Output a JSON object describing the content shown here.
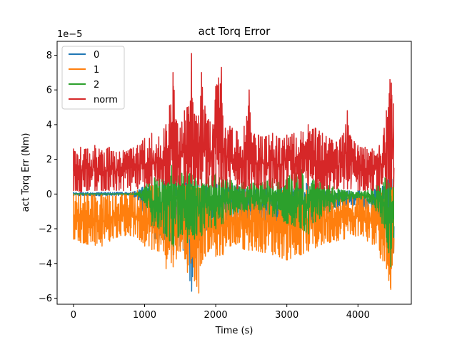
{
  "chart_data": {
    "type": "line",
    "title": "act Torq Error",
    "xlabel": "Time (s)",
    "ylabel": "act Torq Err (Nm)",
    "y_offset_text": "1e−5",
    "xlim": [
      -230,
      4750
    ],
    "ylim": [
      -6.35,
      8.8
    ],
    "y_scale_exponent": -5,
    "xticks": [
      0,
      1000,
      2000,
      3000,
      4000
    ],
    "xtick_labels": [
      "0",
      "1000",
      "2000",
      "3000",
      "4000"
    ],
    "yticks": [
      -6,
      -4,
      -2,
      0,
      2,
      4,
      6,
      8
    ],
    "ytick_labels": [
      "−6",
      "−4",
      "−2",
      "0",
      "2",
      "4",
      "6",
      "8"
    ],
    "legend_position": "top-left",
    "grid": false,
    "series": [
      {
        "name": "0",
        "color": "#1f77b4",
        "envelope": {
          "x": [
            0,
            100,
            200,
            400,
            600,
            800,
            900,
            1000,
            1100,
            1200,
            1300,
            1400,
            1500,
            1600,
            1660,
            1700,
            1800,
            1900,
            2000,
            2100,
            2200,
            2400,
            2600,
            2800,
            3000,
            3200,
            3300,
            3400,
            3600,
            3800,
            4000,
            4200,
            4400,
            4460,
            4500
          ],
          "high": [
            0.1,
            0.1,
            0.1,
            0.1,
            0.1,
            0.1,
            0.2,
            0.5,
            0.6,
            0.6,
            0.8,
            1.0,
            0.8,
            0.9,
            0.8,
            0.8,
            0.7,
            0.6,
            0.6,
            0.6,
            0.5,
            0.4,
            0.4,
            0.4,
            0.4,
            0.6,
            0.8,
            0.6,
            0.3,
            0.2,
            0.2,
            0.2,
            0.8,
            0.9,
            0.8
          ],
          "low": [
            -0.1,
            -0.1,
            -0.1,
            -0.1,
            -0.1,
            -0.1,
            -0.3,
            -1.2,
            -2.5,
            -2.8,
            -3.2,
            -3.5,
            -3.0,
            -4.0,
            -5.6,
            -3.5,
            -2.5,
            -2.0,
            -2.2,
            -2.0,
            -1.6,
            -1.5,
            -1.5,
            -1.6,
            -1.8,
            -2.0,
            -2.2,
            -1.8,
            -1.0,
            -0.8,
            -0.6,
            -1.0,
            -3.0,
            -3.3,
            -3.4
          ]
        }
      },
      {
        "name": "1",
        "color": "#ff7f0e",
        "envelope": {
          "x": [
            0,
            100,
            200,
            400,
            600,
            800,
            900,
            1000,
            1100,
            1200,
            1300,
            1400,
            1500,
            1600,
            1700,
            1760,
            1800,
            1900,
            2000,
            2100,
            2200,
            2400,
            2600,
            2800,
            3000,
            3200,
            3300,
            3400,
            3600,
            3800,
            4000,
            4200,
            4400,
            4460,
            4500
          ],
          "high": [
            0,
            0,
            0,
            0,
            0,
            0.05,
            0.2,
            0.4,
            0.5,
            0.5,
            0.6,
            0.6,
            0.5,
            0.6,
            0.4,
            0.4,
            0.3,
            0.3,
            0.3,
            0.3,
            0.2,
            0.2,
            0.2,
            0.2,
            0.2,
            0.3,
            0.4,
            0.3,
            0.2,
            0.2,
            0.1,
            0.1,
            0.5,
            0.6,
            0.5
          ],
          "low": [
            -2.6,
            -2.8,
            -2.9,
            -3.0,
            -2.5,
            -2.4,
            -2.5,
            -3.0,
            -3.2,
            -3.3,
            -4.3,
            -4.2,
            -3.3,
            -4.5,
            -5.0,
            -5.7,
            -4.0,
            -3.3,
            -3.6,
            -3.5,
            -3.0,
            -3.2,
            -3.3,
            -3.5,
            -3.8,
            -3.5,
            -3.3,
            -3.1,
            -2.8,
            -2.6,
            -2.4,
            -2.9,
            -4.3,
            -5.5,
            -3.4
          ]
        }
      },
      {
        "name": "2",
        "color": "#2ca02c",
        "envelope": {
          "x": [
            0,
            100,
            200,
            400,
            600,
            800,
            900,
            1000,
            1100,
            1200,
            1300,
            1400,
            1500,
            1600,
            1700,
            1800,
            1900,
            2000,
            2100,
            2200,
            2400,
            2600,
            2800,
            3000,
            3200,
            3300,
            3400,
            3600,
            3800,
            4000,
            4200,
            4400,
            4460,
            4500
          ],
          "high": [
            0,
            0,
            0,
            0,
            0,
            0,
            0.05,
            0.4,
            1.2,
            1.0,
            1.5,
            2.4,
            1.2,
            1.3,
            1.0,
            1.4,
            1.0,
            1.2,
            1.0,
            0.8,
            0.7,
            0.6,
            0.9,
            1.0,
            1.5,
            1.2,
            0.8,
            0.5,
            0.2,
            0.1,
            0.3,
            1.2,
            1.5,
            1.0
          ],
          "low": [
            0,
            0,
            0,
            0,
            0,
            0,
            -0.05,
            -0.5,
            -1.8,
            -2.0,
            -2.4,
            -3.0,
            -2.3,
            -2.8,
            -2.6,
            -2.4,
            -1.9,
            -2.0,
            -1.7,
            -1.2,
            -1.0,
            -0.9,
            -1.3,
            -1.7,
            -2.0,
            -2.3,
            -1.6,
            -1.0,
            -0.4,
            -0.2,
            -0.6,
            -2.5,
            -4.2,
            -2.5
          ]
        }
      },
      {
        "name": "norm",
        "color": "#d62728",
        "envelope": {
          "x": [
            0,
            50,
            100,
            200,
            300,
            400,
            500,
            600,
            700,
            800,
            900,
            1000,
            1100,
            1200,
            1300,
            1350,
            1400,
            1450,
            1500,
            1560,
            1600,
            1660,
            1700,
            1760,
            1800,
            1860,
            1900,
            1960,
            2000,
            2080,
            2100,
            2200,
            2300,
            2400,
            2470,
            2500,
            2600,
            2700,
            2800,
            2900,
            3000,
            3100,
            3200,
            3300,
            3400,
            3500,
            3600,
            3700,
            3800,
            3850,
            3900,
            4000,
            4100,
            4200,
            4300,
            4400,
            4450,
            4470,
            4500
          ],
          "high": [
            2.6,
            2.3,
            2.7,
            2.6,
            2.8,
            2.5,
            2.7,
            2.4,
            2.5,
            2.6,
            2.8,
            3.2,
            3.5,
            3.3,
            4.0,
            5.1,
            7.0,
            4.2,
            3.8,
            4.8,
            5.0,
            8.1,
            4.6,
            4.5,
            7.0,
            4.6,
            4.3,
            4.0,
            6.2,
            7.3,
            4.5,
            3.9,
            3.6,
            3.9,
            6.0,
            3.5,
            3.4,
            3.3,
            3.5,
            3.2,
            3.4,
            3.5,
            3.6,
            4.0,
            3.8,
            3.5,
            3.2,
            3.0,
            3.5,
            4.8,
            3.3,
            2.8,
            2.7,
            2.6,
            2.8,
            4.8,
            6.6,
            6.4,
            5.2
          ],
          "low": [
            0.2,
            0.2,
            0.1,
            0.2,
            0.2,
            0.2,
            0.2,
            0.2,
            0.2,
            0.2,
            0.3,
            0.4,
            0.5,
            0.5,
            0.5,
            0.6,
            0.6,
            0.5,
            0.5,
            0.5,
            0.6,
            0.6,
            0.5,
            0.5,
            0.5,
            0.5,
            0.4,
            0.4,
            0.4,
            0.4,
            0.4,
            0.3,
            0.3,
            0.3,
            0.3,
            0.3,
            0.3,
            0.3,
            0.3,
            0.3,
            0.3,
            0.3,
            0.3,
            0.3,
            0.3,
            0.3,
            0.3,
            0.3,
            0.3,
            0.3,
            0.3,
            0.2,
            0.2,
            0.2,
            0.2,
            0.3,
            0.4,
            0.4,
            0.4
          ]
        }
      }
    ]
  }
}
